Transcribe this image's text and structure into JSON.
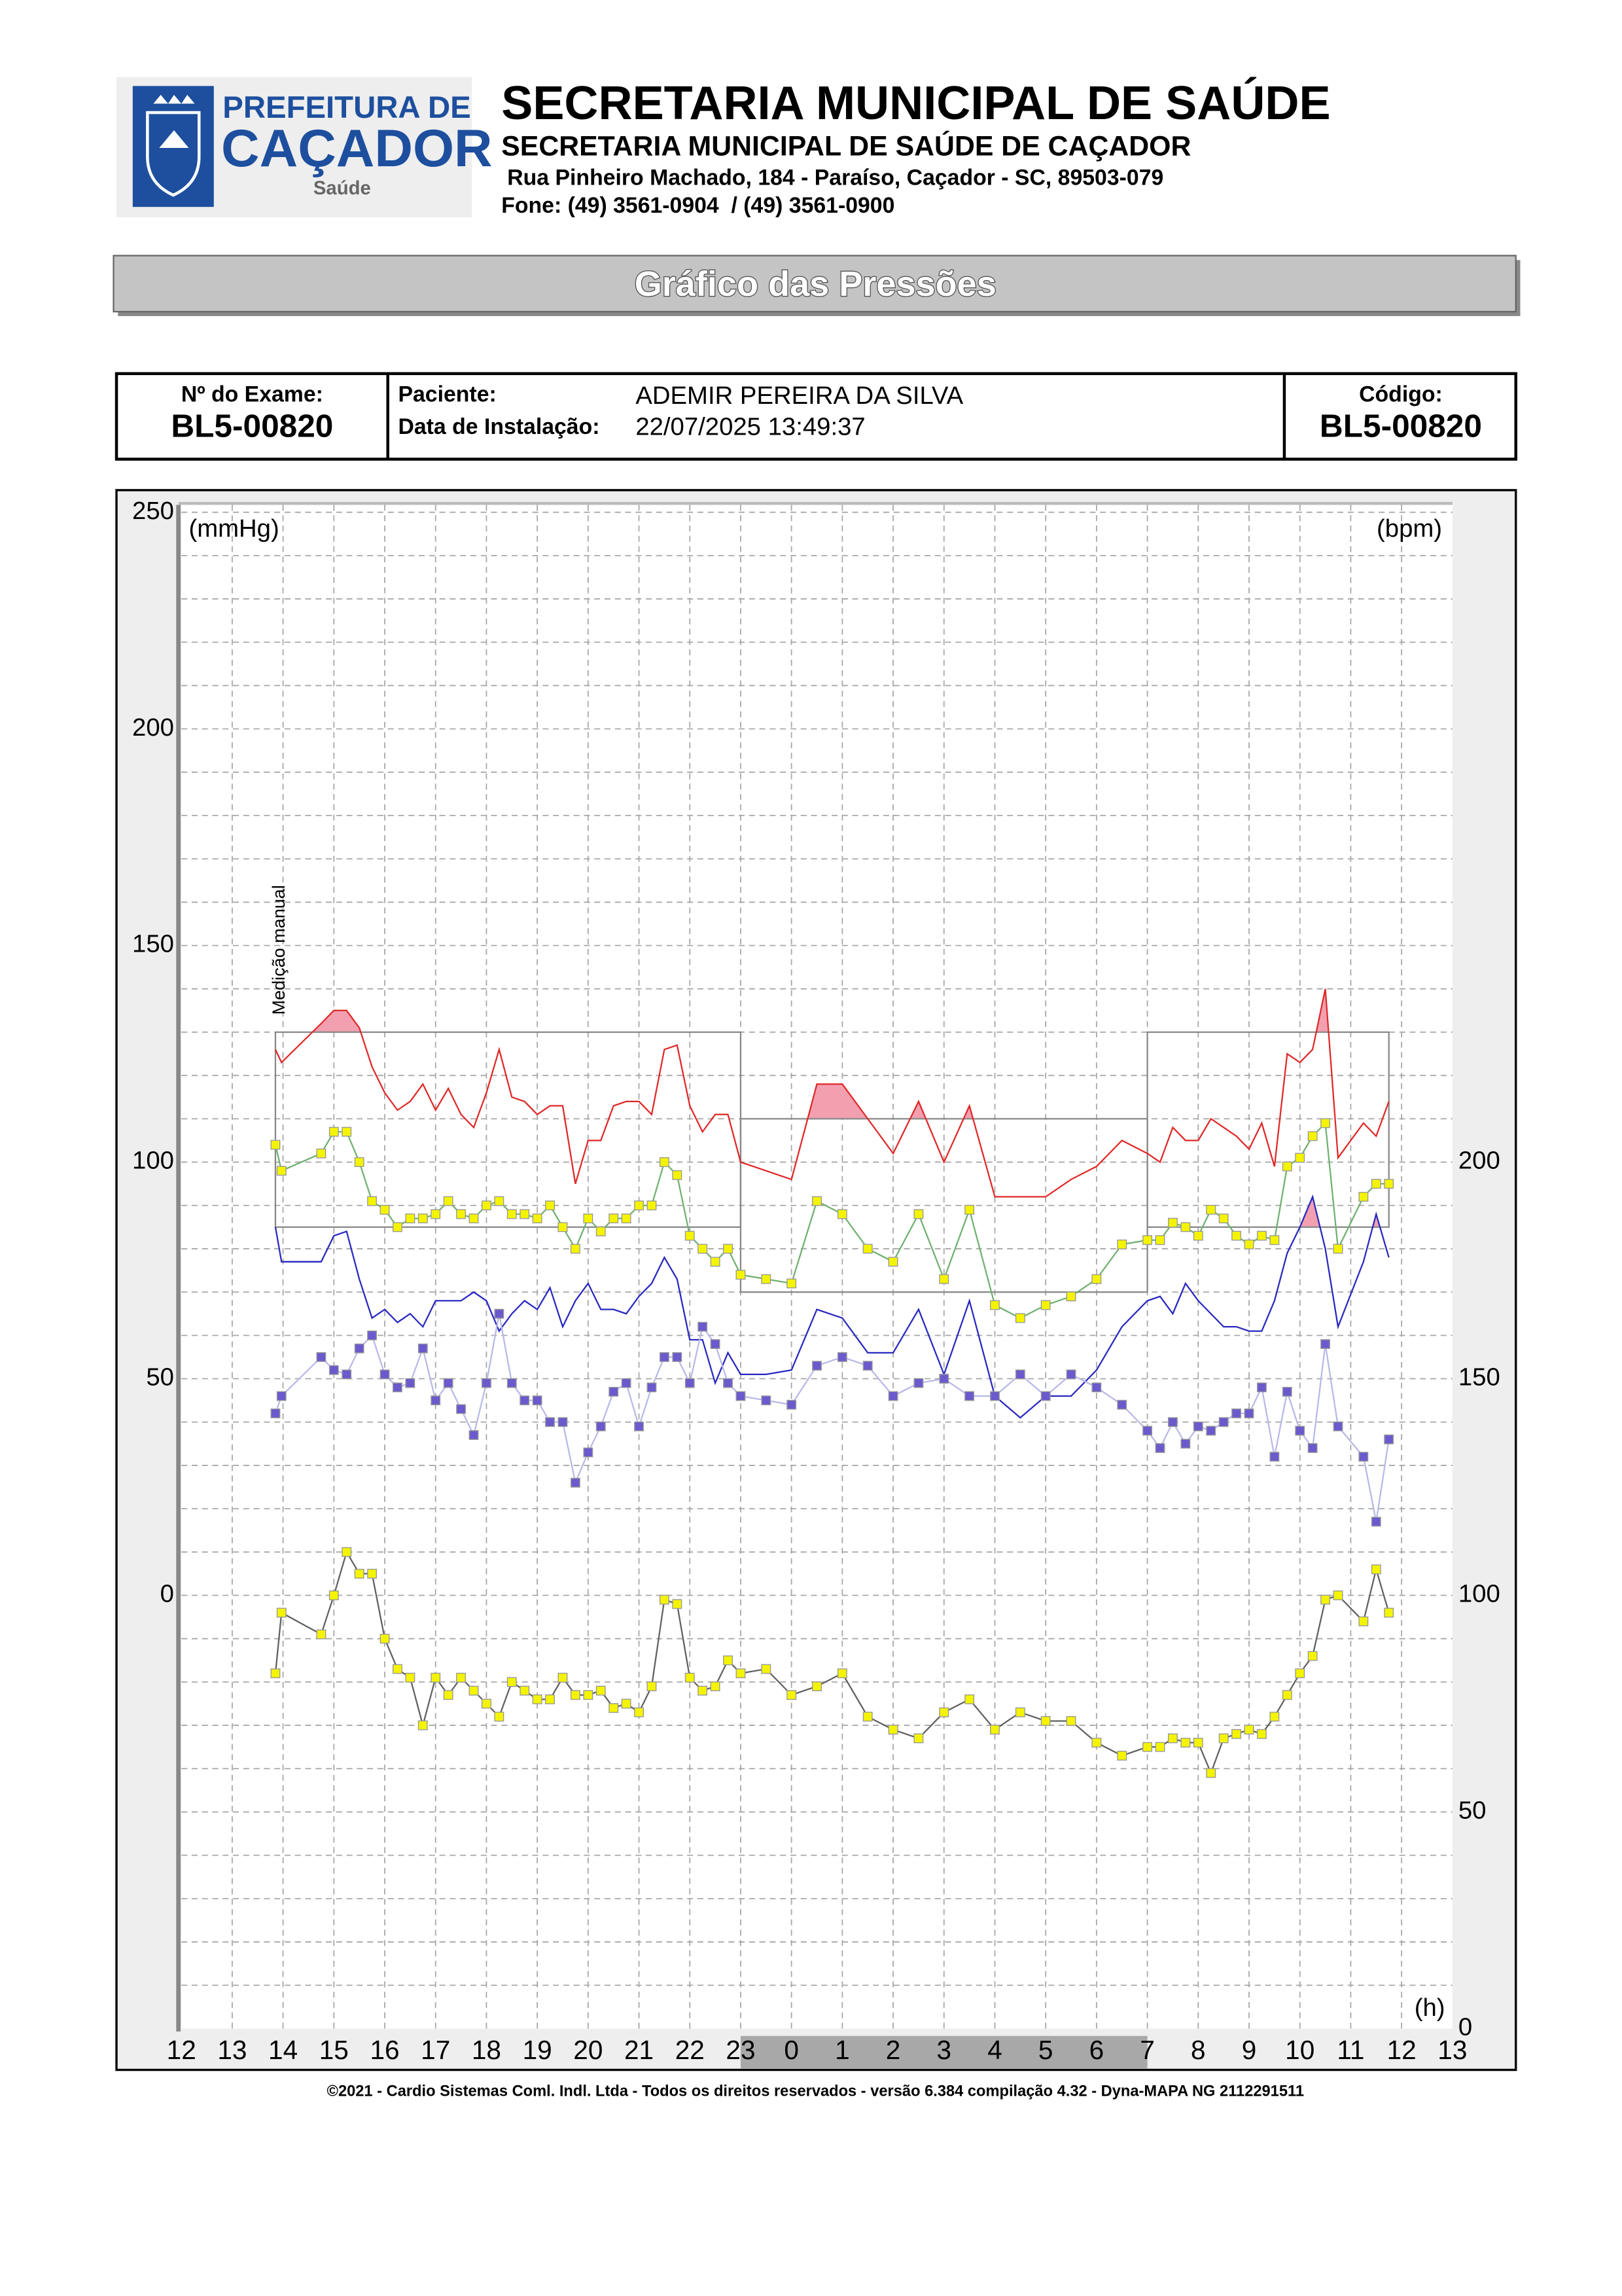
{
  "header": {
    "logo": {
      "line1": "PREFEITURA DE",
      "line2": "CAÇADOR",
      "line3": "Saúde"
    },
    "title": "SECRETARIA MUNICIPAL DE SAÚDE",
    "subtitle": "SECRETARIA MUNICIPAL DE SAÚDE DE CAÇADOR",
    "address": "Rua Pinheiro Machado, 184 - Paraíso, Caçador - SC, 89503-079",
    "phone": "Fone: (49) 3561-0904  / (49) 3561-0900"
  },
  "banner": "Gráfico das Pressões",
  "exam": {
    "exam_label": "Nº do Exame:",
    "exam_number": "BL5-00820",
    "patient_label": "Paciente:",
    "patient": "ADEMIR PEREIRA DA SILVA",
    "date_label": "Data de Instalação:",
    "date": "22/07/2025 13:49:37",
    "code_label": "Código:",
    "code": "BL5-00820"
  },
  "chart_data": {
    "type": "line",
    "y_label": "(mmHg)",
    "y2_label": "(bpm)",
    "x_label": "(h)",
    "xlim": [
      12,
      37
    ],
    "xticks": [
      12,
      13,
      14,
      15,
      16,
      17,
      18,
      19,
      20,
      21,
      22,
      23,
      {
        "value": 24,
        "label": "0"
      },
      {
        "value": 25,
        "label": "1"
      },
      {
        "value": 26,
        "label": "2"
      },
      {
        "value": 27,
        "label": "3"
      },
      {
        "value": 28,
        "label": "4"
      },
      {
        "value": 29,
        "label": "5"
      },
      {
        "value": 30,
        "label": "6"
      },
      {
        "value": 31,
        "label": "7"
      },
      {
        "value": 32,
        "label": "8"
      },
      {
        "value": 33,
        "label": "9"
      },
      {
        "value": 34,
        "label": "10"
      },
      {
        "value": 35,
        "label": "11"
      },
      {
        "value": 36,
        "label": "12"
      },
      {
        "value": 37,
        "label": "13"
      }
    ],
    "ylim": [
      -100,
      250
    ],
    "yticks": [
      0,
      50,
      100,
      150,
      200,
      250
    ],
    "yminorticks": [
      -90,
      -80,
      -70,
      -60,
      -50,
      -40,
      -30,
      -20,
      -10,
      10,
      20,
      30,
      40,
      60,
      70,
      80,
      90,
      110,
      120,
      130,
      140,
      160,
      170,
      180,
      190,
      210,
      220,
      230,
      240
    ],
    "y2lim": [
      0,
      350
    ],
    "y2ticks": [
      0,
      50,
      100,
      150,
      200
    ],
    "grid": true,
    "night": [
      23,
      31
    ],
    "threshold_fill": "#f2a0b0",
    "thresholds": [
      {
        "x": [
          13.85,
          23
        ],
        "values": [
          130,
          85
        ]
      },
      {
        "x": [
          23,
          31
        ],
        "values": [
          110,
          70
        ]
      },
      {
        "x": [
          31,
          35.75
        ],
        "values": [
          130,
          85
        ]
      }
    ],
    "annotations": [
      {
        "text": "Medição manual",
        "x": 13.94,
        "y": 134
      }
    ],
    "x": [
      13.85,
      13.97,
      14.75,
      15,
      15.25,
      15.5,
      15.75,
      16,
      16.25,
      16.5,
      16.75,
      17,
      17.25,
      17.5,
      17.75,
      18,
      18.25,
      18.5,
      18.75,
      19,
      19.25,
      19.5,
      19.75,
      20,
      20.25,
      20.5,
      20.75,
      21,
      21.25,
      21.5,
      21.75,
      22,
      22.25,
      22.5,
      22.75,
      23,
      23.5,
      24,
      24.5,
      25,
      25.5,
      26,
      26.5,
      27,
      27.5,
      28,
      28.5,
      29,
      29.5,
      30,
      30.5,
      31,
      31.25,
      31.5,
      31.75,
      32,
      32.25,
      32.5,
      32.75,
      33,
      33.25,
      33.5,
      33.75,
      34,
      34.25,
      34.5,
      34.75,
      35.25,
      35.5,
      35.75
    ],
    "series": [
      {
        "color": "#e02828",
        "values": [
          126,
          123,
          132,
          135,
          135,
          131,
          122,
          116,
          112,
          114,
          118,
          112,
          117,
          111,
          108,
          116,
          126,
          115,
          114,
          111,
          113,
          113,
          95,
          105,
          105,
          113,
          114,
          114,
          111,
          126,
          127,
          113,
          107,
          111,
          111,
          100,
          98,
          96,
          118,
          118,
          110,
          102,
          114,
          100,
          113,
          92,
          92,
          92,
          96,
          99,
          105,
          102,
          100,
          108,
          105,
          105,
          110,
          108,
          106,
          103,
          109,
          99,
          125,
          123,
          126,
          140,
          101,
          109,
          106,
          114
        ]
      },
      {
        "color": "#70b070",
        "marker_color": "#f4f400",
        "values": [
          104,
          98,
          102,
          107,
          107,
          100,
          91,
          89,
          85,
          87,
          87,
          88,
          91,
          88,
          87,
          90,
          91,
          88,
          88,
          87,
          90,
          85,
          80,
          87,
          84,
          87,
          87,
          90,
          90,
          100,
          97,
          83,
          80,
          77,
          80,
          74,
          73,
          72,
          91,
          88,
          80,
          77,
          88,
          73,
          89,
          67,
          64,
          67,
          69,
          73,
          81,
          82,
          82,
          86,
          85,
          83,
          89,
          87,
          83,
          81,
          83,
          82,
          99,
          101,
          106,
          109,
          80,
          92,
          95,
          95
        ]
      },
      {
        "color": "#2828c0",
        "values": [
          85,
          77,
          77,
          83,
          84,
          73,
          64,
          66,
          63,
          65,
          62,
          68,
          68,
          68,
          70,
          68,
          61,
          65,
          68,
          66,
          71,
          62,
          68,
          72,
          66,
          66,
          65,
          69,
          72,
          78,
          73,
          59,
          59,
          49,
          56,
          51,
          51,
          52,
          66,
          64,
          56,
          56,
          66,
          51,
          68,
          46,
          41,
          46,
          46,
          52,
          62,
          68,
          69,
          65,
          72,
          68,
          65,
          62,
          62,
          61,
          61,
          68,
          79,
          85,
          92,
          80,
          62,
          77,
          88,
          78
        ]
      },
      {
        "color": "#b8b8e8",
        "marker_color": "#6a5acd",
        "values": [
          42,
          46,
          55,
          52,
          51,
          57,
          60,
          51,
          48,
          49,
          57,
          45,
          49,
          43,
          37,
          49,
          65,
          49,
          45,
          45,
          40,
          40,
          26,
          33,
          39,
          47,
          49,
          39,
          48,
          55,
          55,
          49,
          62,
          58,
          49,
          46,
          45,
          44,
          53,
          55,
          53,
          46,
          49,
          50,
          46,
          46,
          51,
          46,
          51,
          48,
          44,
          38,
          34,
          40,
          35,
          39,
          38,
          40,
          42,
          42,
          48,
          32,
          47,
          38,
          34,
          58,
          39,
          32,
          17,
          36
        ]
      },
      {
        "color": "#606060",
        "marker_color": "#f4f400",
        "axis": "y2",
        "values": [
          82,
          96,
          91,
          100,
          110,
          105,
          105,
          90,
          83,
          81,
          70,
          81,
          77,
          81,
          78,
          75,
          72,
          80,
          78,
          76,
          76,
          81,
          77,
          77,
          78,
          74,
          75,
          73,
          79,
          99,
          98,
          81,
          78,
          79,
          85,
          82,
          83,
          77,
          79,
          82,
          72,
          69,
          67,
          73,
          76,
          69,
          73,
          71,
          71,
          66,
          63,
          65,
          65,
          67,
          66,
          66,
          59,
          67,
          68,
          69,
          68,
          72,
          77,
          82,
          86,
          99,
          100,
          94,
          106,
          96
        ]
      }
    ]
  },
  "footer": "©2021 - Cardio Sistemas Coml. Indl. Ltda - Todos os direitos reservados - versão 6.384 compilação 4.32 - Dyna-MAPA NG 2112291511"
}
